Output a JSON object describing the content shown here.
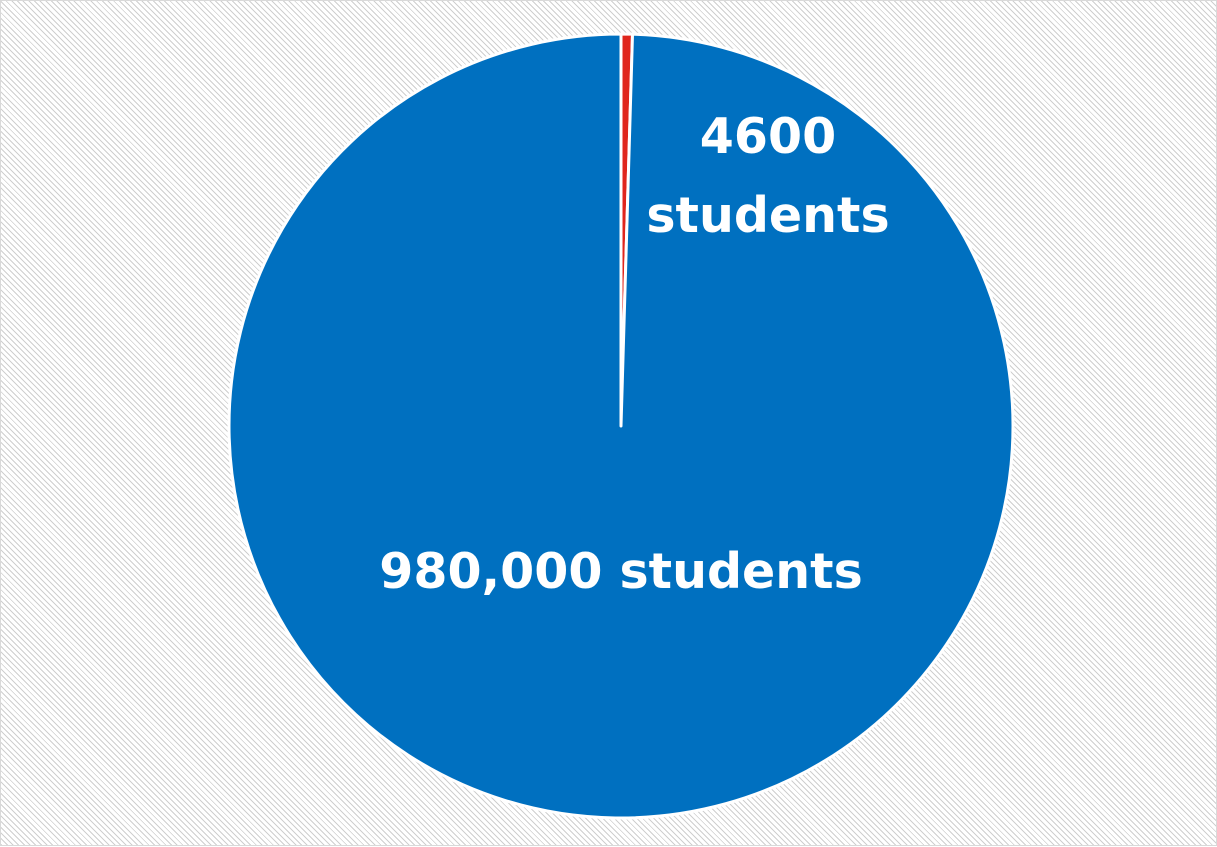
{
  "chart_data": {
    "type": "pie",
    "title": "",
    "slices": [
      {
        "label": "4600 students",
        "value": 4600,
        "color": "#E0261D"
      },
      {
        "label": "980,000 students",
        "value": 980000,
        "color": "#0070C0"
      }
    ],
    "start_angle": "top",
    "direction": "clockwise",
    "slice_border_color": "#FFFFFF",
    "background_pattern": "diagonal-hatch",
    "legend": "none"
  },
  "labels": {
    "small_line1": "4600",
    "small_line2": "students",
    "large": "980,000 students"
  }
}
